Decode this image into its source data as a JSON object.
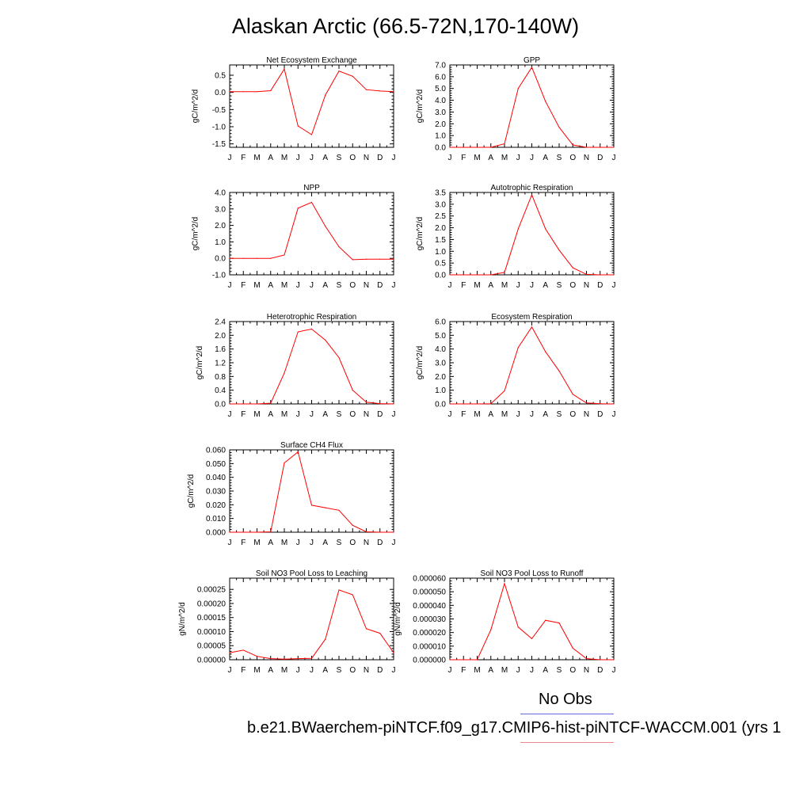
{
  "title": "Alaskan Arctic (66.5-72N,170-140W)",
  "legend": {
    "label": "No Obs",
    "case_name": "b.e21.BWaerchem-piNTCF.f09_g17.CMIP6-hist-piNTCF-WACCM.001 (yrs 1"
  },
  "colors": {
    "line": "#ff0000",
    "obs": "#6a6adf"
  },
  "chart_data": [
    {
      "type": "line",
      "title": "Net Ecosystem Exchange",
      "ylabel": "gC/m^2/d",
      "categories": [
        "J",
        "F",
        "M",
        "A",
        "M",
        "J",
        "J",
        "A",
        "S",
        "O",
        "N",
        "D",
        "J"
      ],
      "ylim": [
        -1.6,
        0.8
      ],
      "yticks": [
        "0.5",
        "0.0",
        "-0.5",
        "-1.0",
        "-1.5"
      ],
      "ytick_values": [
        0.5,
        0.0,
        -0.5,
        -1.0,
        -1.5
      ],
      "values": [
        0.02,
        0.02,
        0.02,
        0.05,
        0.68,
        -0.98,
        -1.23,
        -0.08,
        0.62,
        0.47,
        0.08,
        0.04,
        0.02
      ]
    },
    {
      "type": "line",
      "title": "GPP",
      "ylabel": "gC/m^2/d",
      "categories": [
        "J",
        "F",
        "M",
        "A",
        "M",
        "J",
        "J",
        "A",
        "S",
        "O",
        "N",
        "D",
        "J"
      ],
      "ylim": [
        0,
        7
      ],
      "yticks": [
        "7.0",
        "6.0",
        "5.0",
        "4.0",
        "3.0",
        "2.0",
        "1.0",
        "0.0"
      ],
      "ytick_values": [
        7,
        6,
        5,
        4,
        3,
        2,
        1,
        0
      ],
      "values": [
        0.0,
        0.0,
        0.0,
        0.0,
        0.3,
        5.0,
        6.8,
        3.9,
        1.7,
        0.2,
        0.0,
        0.0,
        0.0
      ]
    },
    {
      "type": "line",
      "title": "NPP",
      "ylabel": "gC/m^2/d",
      "categories": [
        "J",
        "F",
        "M",
        "A",
        "M",
        "J",
        "J",
        "A",
        "S",
        "O",
        "N",
        "D",
        "J"
      ],
      "ylim": [
        -1,
        4
      ],
      "yticks": [
        "4.0",
        "3.0",
        "2.0",
        "1.0",
        "0.0",
        "-1.0"
      ],
      "ytick_values": [
        4,
        3,
        2,
        1,
        0,
        -1
      ],
      "values": [
        0.0,
        0.0,
        0.0,
        0.0,
        0.2,
        3.05,
        3.4,
        1.95,
        0.7,
        -0.08,
        -0.05,
        -0.05,
        -0.05
      ]
    },
    {
      "type": "line",
      "title": "Autotrophic Respiration",
      "ylabel": "gC/m^2/d",
      "categories": [
        "J",
        "F",
        "M",
        "A",
        "M",
        "J",
        "J",
        "A",
        "S",
        "O",
        "N",
        "D",
        "J"
      ],
      "ylim": [
        0,
        3.5
      ],
      "yticks": [
        "3.5",
        "3.0",
        "2.5",
        "2.0",
        "1.5",
        "1.0",
        "0.5",
        "0.0"
      ],
      "ytick_values": [
        3.5,
        3.0,
        2.5,
        2.0,
        1.5,
        1.0,
        0.5,
        0.0
      ],
      "values": [
        0.0,
        0.0,
        0.0,
        0.0,
        0.1,
        1.95,
        3.4,
        1.95,
        1.05,
        0.3,
        0.02,
        0.0,
        0.0
      ]
    },
    {
      "type": "line",
      "title": "Heterotrophic Respiration",
      "ylabel": "gC/m^2/d",
      "categories": [
        "J",
        "F",
        "M",
        "A",
        "M",
        "J",
        "J",
        "A",
        "S",
        "O",
        "N",
        "D",
        "J"
      ],
      "ylim": [
        0,
        2.4
      ],
      "yticks": [
        "2.4",
        "2.0",
        "1.6",
        "1.2",
        "0.8",
        "0.4",
        "0.0"
      ],
      "ytick_values": [
        2.4,
        2.0,
        1.6,
        1.2,
        0.8,
        0.4,
        0.0
      ],
      "values": [
        0.0,
        0.0,
        0.0,
        0.02,
        0.9,
        2.1,
        2.18,
        1.86,
        1.35,
        0.4,
        0.05,
        0.01,
        0.0
      ]
    },
    {
      "type": "line",
      "title": "Ecosystem Respiration",
      "ylabel": "gC/m^2/d",
      "categories": [
        "J",
        "F",
        "M",
        "A",
        "M",
        "J",
        "J",
        "A",
        "S",
        "O",
        "N",
        "D",
        "J"
      ],
      "ylim": [
        0,
        6
      ],
      "yticks": [
        "6.0",
        "5.0",
        "4.0",
        "3.0",
        "2.0",
        "1.0",
        "0.0"
      ],
      "ytick_values": [
        6,
        5,
        4,
        3,
        2,
        1,
        0
      ],
      "values": [
        0.0,
        0.0,
        0.0,
        0.02,
        0.95,
        4.1,
        5.6,
        3.8,
        2.4,
        0.7,
        0.07,
        0.01,
        0.0
      ]
    },
    {
      "type": "line",
      "title": "Surface CH4 Flux",
      "ylabel": "gC/m^2/d",
      "categories": [
        "J",
        "F",
        "M",
        "A",
        "M",
        "J",
        "J",
        "A",
        "S",
        "O",
        "N",
        "D",
        "J"
      ],
      "ylim": [
        0,
        0.06
      ],
      "yticks": [
        "0.060",
        "0.050",
        "0.040",
        "0.030",
        "0.020",
        "0.010",
        "0.000"
      ],
      "ytick_values": [
        0.06,
        0.05,
        0.04,
        0.03,
        0.02,
        0.01,
        0.0
      ],
      "values": [
        0.0,
        0.0,
        0.0,
        0.0003,
        0.0505,
        0.0585,
        0.0197,
        0.0178,
        0.016,
        0.005,
        0.0003,
        0.0,
        0.0
      ]
    },
    {
      "type": "line",
      "title": "Soil NO3 Pool Loss to Leaching",
      "ylabel": "gN/m^2/d",
      "categories": [
        "J",
        "F",
        "M",
        "A",
        "M",
        "J",
        "J",
        "A",
        "S",
        "O",
        "N",
        "D",
        "J"
      ],
      "ylim": [
        0,
        0.00029
      ],
      "yticks": [
        "0.00025",
        "0.00020",
        "0.00015",
        "0.00010",
        "0.00005",
        "0.00000"
      ],
      "ytick_values": [
        0.00025,
        0.0002,
        0.00015,
        0.0001,
        5e-05,
        0.0
      ],
      "values": [
        2.5e-05,
        3.4e-05,
        1.2e-05,
        4e-06,
        2e-06,
        4e-06,
        5e-06,
        7.3e-05,
        0.000248,
        0.000231,
        0.00011,
        9.4e-05,
        2.5e-05
      ]
    },
    {
      "type": "line",
      "title": "Soil NO3 Pool Loss to Runoff",
      "ylabel": "gN/m^2/d",
      "categories": [
        "J",
        "F",
        "M",
        "A",
        "M",
        "J",
        "J",
        "A",
        "S",
        "O",
        "N",
        "D",
        "J"
      ],
      "ylim": [
        0,
        6e-05
      ],
      "yticks": [
        "0.000060",
        "0.000050",
        "0.000040",
        "0.000030",
        "0.000020",
        "0.000010",
        "0.000000"
      ],
      "ytick_values": [
        6e-05,
        5e-05,
        4e-05,
        3e-05,
        2e-05,
        1e-05,
        0.0
      ],
      "values": [
        0.0,
        0.0,
        0.0,
        2.2e-05,
        5.6e-05,
        2.4e-05,
        1.55e-05,
        2.9e-05,
        2.7e-05,
        8.5e-06,
        8e-07,
        0.0,
        0.0
      ]
    }
  ]
}
